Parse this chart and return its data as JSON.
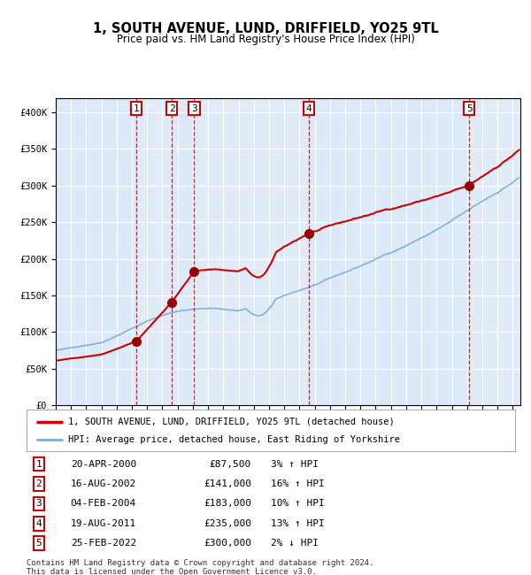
{
  "title": "1, SOUTH AVENUE, LUND, DRIFFIELD, YO25 9TL",
  "subtitle": "Price paid vs. HM Land Registry's House Price Index (HPI)",
  "xlim_start": 1995.0,
  "xlim_end": 2025.5,
  "ylim_min": 0,
  "ylim_max": 420000,
  "yticks": [
    0,
    50000,
    100000,
    150000,
    200000,
    250000,
    300000,
    350000,
    400000
  ],
  "ytick_labels": [
    "£0",
    "£50K",
    "£100K",
    "£150K",
    "£200K",
    "£250K",
    "£300K",
    "£350K",
    "£400K"
  ],
  "xticks": [
    1995,
    1996,
    1997,
    1998,
    1999,
    2000,
    2001,
    2002,
    2003,
    2004,
    2005,
    2006,
    2007,
    2008,
    2009,
    2010,
    2011,
    2012,
    2013,
    2014,
    2015,
    2016,
    2017,
    2018,
    2019,
    2020,
    2021,
    2022,
    2023,
    2024,
    2025
  ],
  "background_color": "#dce9f8",
  "grid_color": "#ffffff",
  "red_line_color": "#cc0000",
  "blue_line_color": "#7ab0d4",
  "sale_marker_color": "#990000",
  "sale_vline_color": "#cc0000",
  "number_box_color": "#cc0000",
  "sale_dates_decimal": [
    2000.3,
    2002.62,
    2004.09,
    2011.63,
    2022.15
  ],
  "sale_prices": [
    87500,
    141000,
    183000,
    235000,
    300000
  ],
  "sale_labels": [
    "1",
    "2",
    "3",
    "4",
    "5"
  ],
  "sale_dates_str": [
    "20-APR-2000",
    "16-AUG-2002",
    "04-FEB-2004",
    "19-AUG-2011",
    "25-FEB-2022"
  ],
  "sale_prices_str": [
    "£87,500",
    "£141,000",
    "£183,000",
    "£235,000",
    "£300,000"
  ],
  "sale_pct_str": [
    "3% ↑ HPI",
    "16% ↑ HPI",
    "10% ↑ HPI",
    "13% ↑ HPI",
    "2% ↓ HPI"
  ],
  "legend_red_label": "1, SOUTH AVENUE, LUND, DRIFFIELD, YO25 9TL (detached house)",
  "legend_blue_label": "HPI: Average price, detached house, East Riding of Yorkshire",
  "footnote": "Contains HM Land Registry data © Crown copyright and database right 2024.\nThis data is licensed under the Open Government Licence v3.0."
}
